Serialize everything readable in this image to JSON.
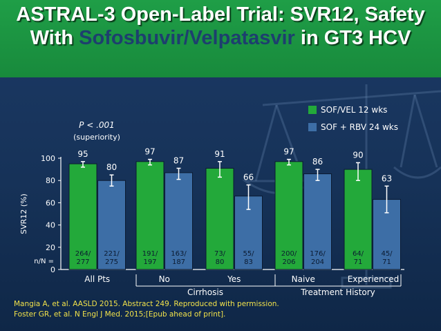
{
  "title": {
    "pre": "ASTRAL-3 Open-Label Trial: SVR12, Safety With ",
    "highlight": "Sofosbuvir/Velpatasvir",
    "post": " in GT3 HCV"
  },
  "colors": {
    "sof_vel": "#23a93a",
    "sof_rbv": "#3d6ea6",
    "header": "#1f9e47",
    "citation": "#f2e24a"
  },
  "annotation": {
    "p_value": "P < .001",
    "note": "(superiority)"
  },
  "citations": [
    "Mangia A, et al. AASLD 2015. Abstract 249. Reproduced with permission.",
    "Foster GR, et al. N Engl J Med. 2015;[Epub ahead of print]."
  ],
  "chart_data": {
    "type": "bar",
    "ylabel": "SVR12 (%)",
    "ylim": [
      0,
      100
    ],
    "yticks": [
      0,
      20,
      40,
      60,
      80,
      100
    ],
    "n_label": "n/N =",
    "categories": [
      "All Pts",
      "No",
      "Yes",
      "Naive",
      "Experienced"
    ],
    "groups": [
      {
        "label": "Cirrhosis",
        "categories": [
          "No",
          "Yes"
        ]
      },
      {
        "label": "Treatment History",
        "categories": [
          "Naive",
          "Experienced"
        ]
      }
    ],
    "legend_position": "top-right",
    "series": [
      {
        "name": "SOF/VEL 12 wks",
        "values": [
          95,
          97,
          91,
          97,
          90
        ],
        "n": [
          "264/\n277",
          "191/\n197",
          "73/\n80",
          "200/\n206",
          "64/\n71"
        ],
        "error": [
          [
            92,
            97
          ],
          [
            94,
            99
          ],
          [
            83,
            97
          ],
          [
            94,
            99
          ],
          [
            80,
            96
          ]
        ]
      },
      {
        "name": "SOF + RBV 24 wks",
        "values": [
          80,
          87,
          66,
          86,
          63
        ],
        "n": [
          "221/\n275",
          "163/\n187",
          "55/\n83",
          "176/\n204",
          "45/\n71"
        ],
        "error": [
          [
            75,
            85
          ],
          [
            81,
            91
          ],
          [
            54,
            76
          ],
          [
            80,
            90
          ],
          [
            51,
            75
          ]
        ]
      }
    ]
  }
}
